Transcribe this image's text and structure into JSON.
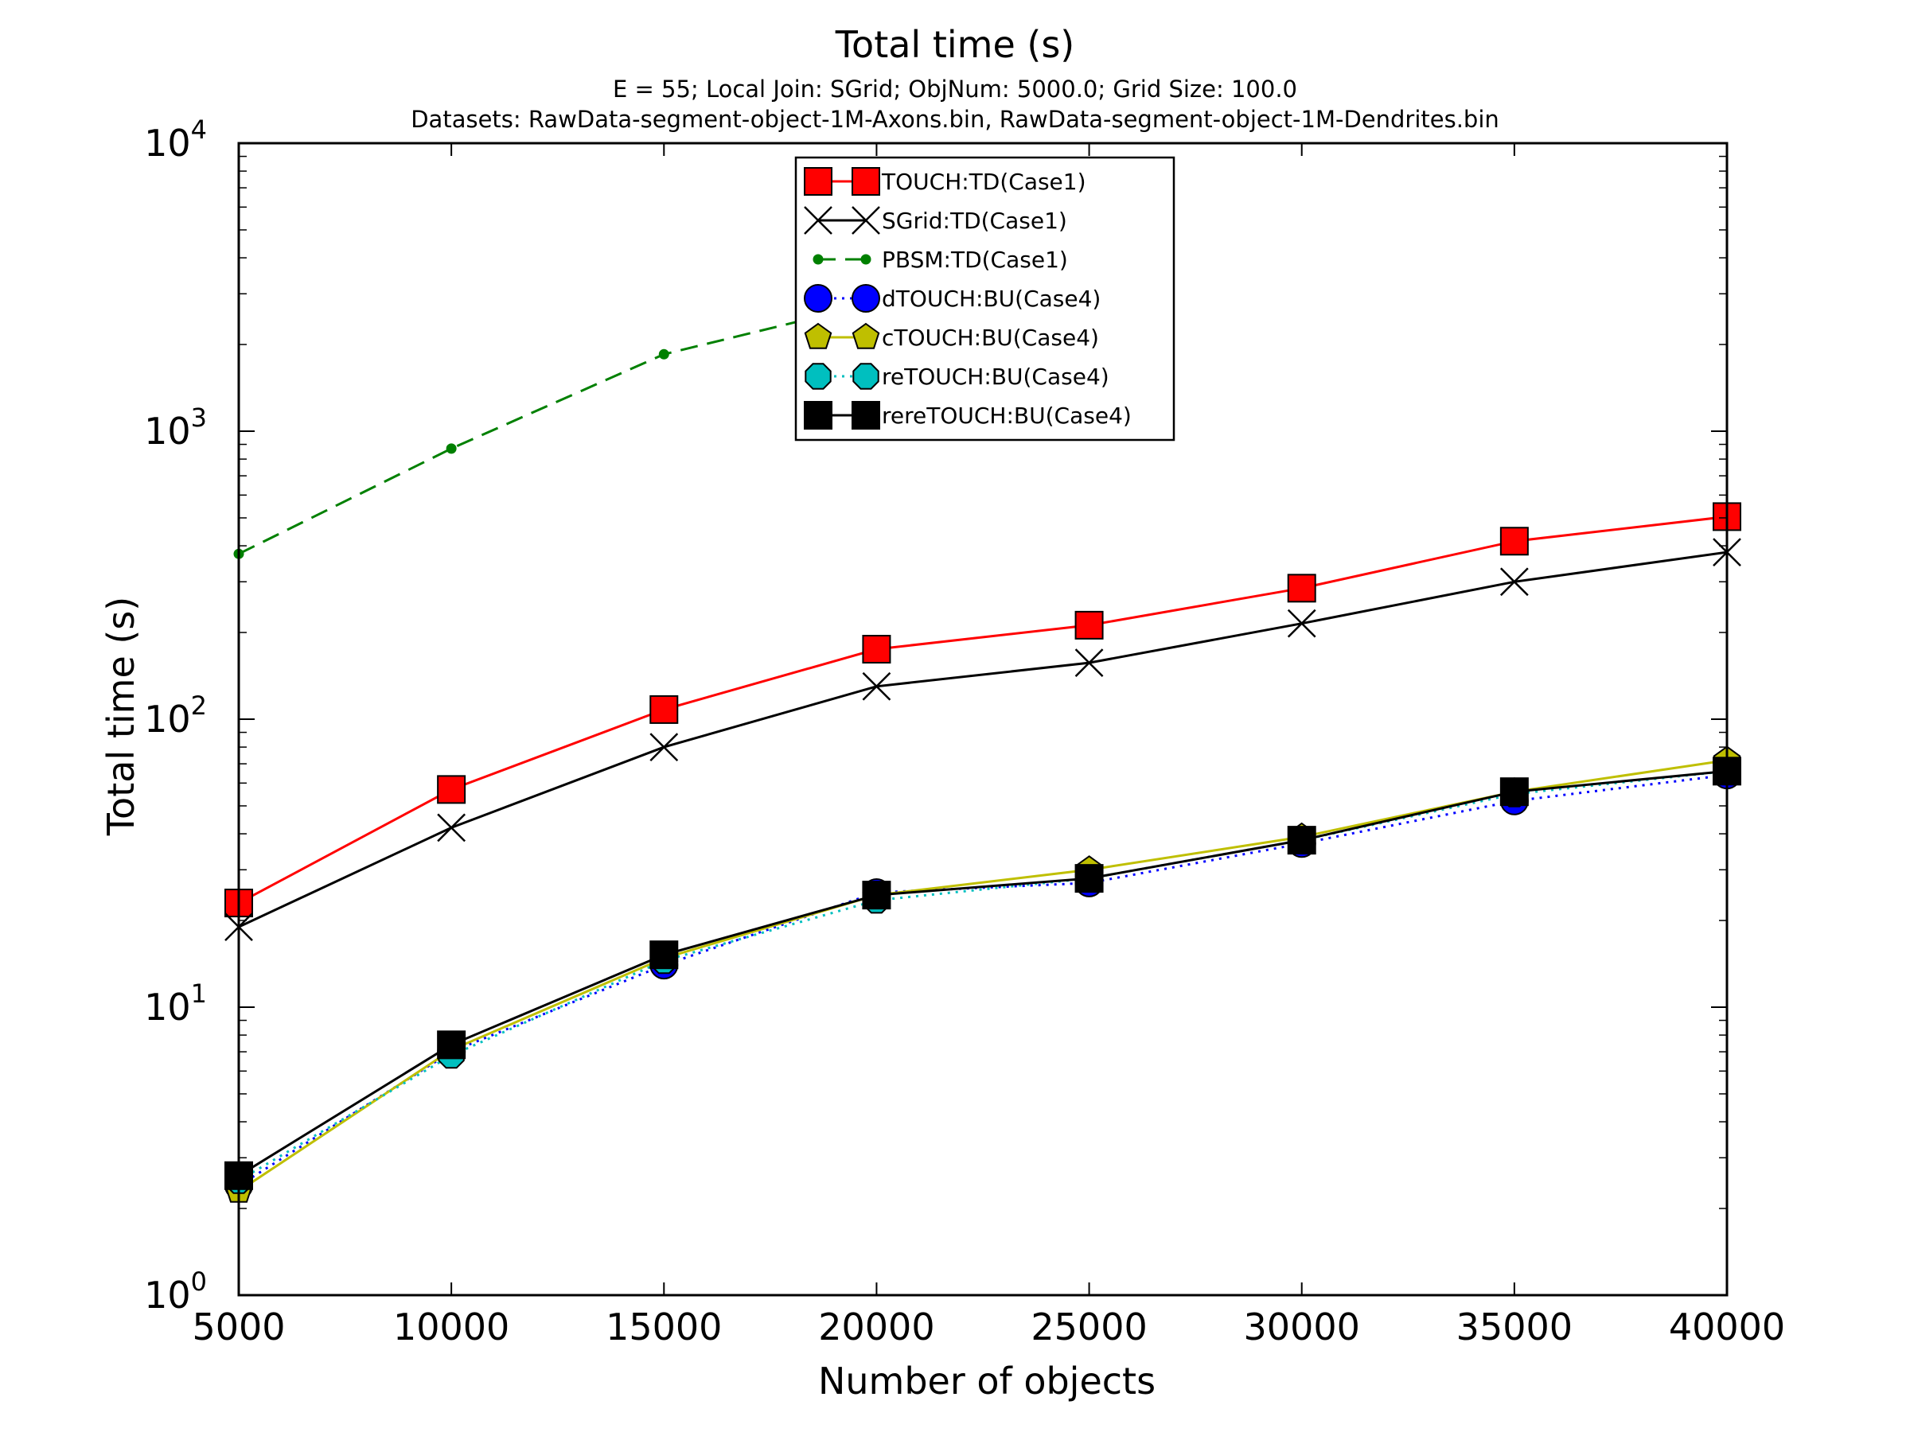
{
  "chart_data": {
    "type": "line",
    "title": "Total time (s)",
    "subtitle_lines": [
      "E = 55; Local Join: SGrid; ObjNum: 5000.0; Grid Size: 100.0",
      "Datasets: RawData-segment-object-1M-Axons.bin, RawData-segment-object-1M-Dendrites.bin"
    ],
    "xlabel": "Number of objects",
    "ylabel": "Total time (s)",
    "xlim": [
      5000,
      40000
    ],
    "ylim": [
      1,
      10000
    ],
    "yscale": "log",
    "grid": false,
    "legend_position": "top-center",
    "x_ticks": [
      5000,
      10000,
      15000,
      20000,
      25000,
      30000,
      35000,
      40000
    ],
    "x_tick_labels": [
      "5000",
      "10000",
      "15000",
      "20000",
      "25000",
      "30000",
      "35000",
      "40000"
    ],
    "y_ticks": [
      {
        "value": 1,
        "base": "10",
        "exp": "0"
      },
      {
        "value": 10,
        "base": "10",
        "exp": "1"
      },
      {
        "value": 100,
        "base": "10",
        "exp": "2"
      },
      {
        "value": 1000,
        "base": "10",
        "exp": "3"
      },
      {
        "value": 10000,
        "base": "10",
        "exp": "4"
      }
    ],
    "x": [
      5000,
      10000,
      15000,
      20000,
      25000,
      30000,
      35000,
      40000
    ],
    "series": [
      {
        "name": "TOUCH:TD(Case1)",
        "color": "#ff0000",
        "line": "solid",
        "marker": "square",
        "values": [
          23,
          57,
          108,
          175,
          212,
          285,
          415,
          505
        ]
      },
      {
        "name": "SGrid:TD(Case1)",
        "color": "#000000",
        "line": "solid",
        "marker": "x",
        "values": [
          19,
          42,
          80,
          130,
          157,
          215,
          300,
          380
        ]
      },
      {
        "name": "PBSM:TD(Case1)",
        "color": "#008000",
        "line": "dashed",
        "marker": "dot",
        "values": [
          375,
          870,
          1850,
          2800,
          null,
          null,
          null,
          null
        ]
      },
      {
        "name": "dTOUCH:BU(Case4)",
        "color": "#0000ff",
        "line": "dotted",
        "marker": "circle",
        "values": [
          2.4,
          7.0,
          14.0,
          25.0,
          27.0,
          37.0,
          52.0,
          64.0
        ]
      },
      {
        "name": "cTOUCH:BU(Case4)",
        "color": "#bfbf00",
        "line": "solid",
        "marker": "pentagon",
        "values": [
          2.3,
          7.1,
          14.8,
          24.5,
          30.0,
          39.0,
          56.0,
          72.0
        ]
      },
      {
        "name": "reTOUCH:BU(Case4)",
        "color": "#00bfbf",
        "line": "dotted",
        "marker": "octagon",
        "values": [
          2.5,
          6.8,
          14.5,
          23.5,
          28.0,
          38.0,
          55.0,
          66.0
        ]
      },
      {
        "name": "rereTOUCH:BU(Case4)",
        "color": "#000000",
        "line": "solid",
        "marker": "square",
        "values": [
          2.6,
          7.4,
          15.2,
          24.5,
          28.0,
          38.0,
          56.0,
          66.0
        ]
      }
    ]
  }
}
